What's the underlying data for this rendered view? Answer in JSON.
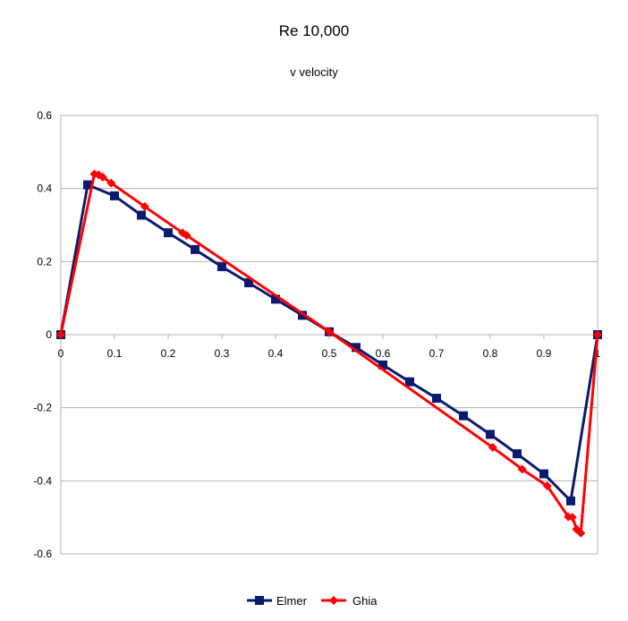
{
  "chart_data": {
    "type": "line",
    "title": "Re 10,000",
    "subtitle": "v velocity",
    "xlabel": "",
    "ylabel": "",
    "xlim": [
      0,
      1
    ],
    "ylim": [
      -0.6,
      0.6
    ],
    "x_ticks": [
      0,
      0.1,
      0.2,
      0.3,
      0.4,
      0.5,
      0.6,
      0.7,
      0.8,
      0.9,
      1
    ],
    "x_tick_labels": [
      "0",
      "0.1",
      "0.2",
      "0.3",
      "0.4",
      "0.5",
      "0.6",
      "0.7",
      "0.8",
      "0.9",
      "1"
    ],
    "y_ticks": [
      0.6,
      0.4,
      0.2,
      0,
      -0.2,
      -0.4,
      -0.6
    ],
    "y_tick_labels": [
      "0.6",
      "0.4",
      "0.2",
      "0",
      "-0.2",
      "-0.4",
      "-0.6"
    ],
    "grid": "horizontal",
    "legend_position": "bottom",
    "series": [
      {
        "name": "Elmer",
        "color": "#0a1a6e",
        "marker": "square",
        "x": [
          0,
          0.05,
          0.1,
          0.15,
          0.2,
          0.25,
          0.3,
          0.35,
          0.4,
          0.45,
          0.5,
          0.55,
          0.6,
          0.65,
          0.7,
          0.75,
          0.8,
          0.85,
          0.9,
          0.95,
          1
        ],
        "y": [
          0,
          0.41,
          0.38,
          0.327,
          0.279,
          0.233,
          0.186,
          0.142,
          0.097,
          0.053,
          0.008,
          -0.035,
          -0.083,
          -0.129,
          -0.174,
          -0.222,
          -0.273,
          -0.326,
          -0.381,
          -0.455,
          0
        ]
      },
      {
        "name": "Ghia",
        "color": "#ff0000",
        "marker": "diamond",
        "x": [
          0,
          0.0625,
          0.0703,
          0.0781,
          0.0938,
          0.1563,
          0.2266,
          0.2344,
          0.5,
          0.8047,
          0.8594,
          0.9063,
          0.9453,
          0.9531,
          0.9609,
          0.9688,
          1
        ],
        "y": [
          0,
          0.4397,
          0.4373,
          0.4312,
          0.4149,
          0.3507,
          0.2788,
          0.2719,
          0.0083,
          -0.3087,
          -0.3682,
          -0.4139,
          -0.4983,
          -0.5,
          -0.5328,
          -0.5432,
          0
        ]
      }
    ]
  }
}
